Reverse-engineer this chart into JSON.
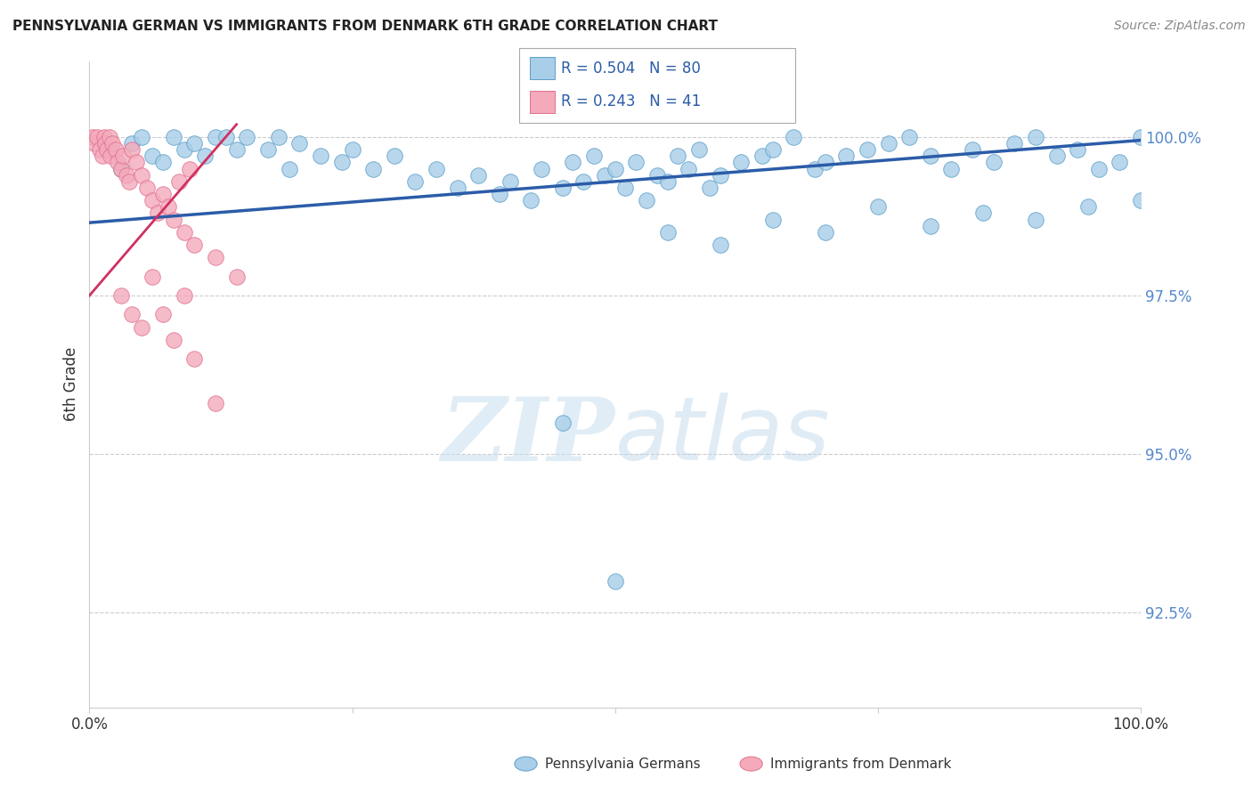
{
  "title": "PENNSYLVANIA GERMAN VS IMMIGRANTS FROM DENMARK 6TH GRADE CORRELATION CHART",
  "source": "Source: ZipAtlas.com",
  "ylabel": "6th Grade",
  "ytick_values": [
    92.5,
    95.0,
    97.5,
    100.0
  ],
  "xmin": 0.0,
  "xmax": 100.0,
  "ymin": 91.0,
  "ymax": 101.2,
  "legend_blue_label": "Pennsylvania Germans",
  "legend_pink_label": "Immigrants from Denmark",
  "R_blue": 0.504,
  "N_blue": 80,
  "R_pink": 0.243,
  "N_pink": 41,
  "blue_color": "#A8CEE8",
  "blue_edge_color": "#5B9EC9",
  "blue_line_color": "#2B5CA8",
  "pink_color": "#F4AABB",
  "pink_edge_color": "#E07090",
  "pink_line_color": "#D03060",
  "watermark_color": "#DDEEF8",
  "tick_color": "#5588CC",
  "grid_color": "#CCCCCC",
  "spine_color": "#CCCCCC",
  "title_color": "#222222",
  "source_color": "#888888",
  "label_color": "#333333",
  "blue_points_x": [
    2,
    3,
    4,
    5,
    6,
    7,
    8,
    9,
    10,
    11,
    12,
    13,
    14,
    15,
    17,
    18,
    19,
    20,
    22,
    24,
    25,
    27,
    29,
    31,
    33,
    35,
    37,
    39,
    40,
    42,
    43,
    45,
    46,
    47,
    48,
    49,
    50,
    51,
    52,
    53,
    54,
    55,
    56,
    57,
    58,
    59,
    60,
    62,
    64,
    65,
    67,
    69,
    70,
    72,
    74,
    76,
    78,
    80,
    82,
    84,
    86,
    88,
    90,
    92,
    94,
    96,
    98,
    100,
    55,
    60,
    65,
    70,
    75,
    80,
    85,
    90,
    95,
    100,
    50,
    45
  ],
  "blue_points_y": [
    99.8,
    99.5,
    99.9,
    100.0,
    99.7,
    99.6,
    100.0,
    99.8,
    99.9,
    99.7,
    100.0,
    100.0,
    99.8,
    100.0,
    99.8,
    100.0,
    99.5,
    99.9,
    99.7,
    99.6,
    99.8,
    99.5,
    99.7,
    99.3,
    99.5,
    99.2,
    99.4,
    99.1,
    99.3,
    99.0,
    99.5,
    99.2,
    99.6,
    99.3,
    99.7,
    99.4,
    99.5,
    99.2,
    99.6,
    99.0,
    99.4,
    99.3,
    99.7,
    99.5,
    99.8,
    99.2,
    99.4,
    99.6,
    99.7,
    99.8,
    100.0,
    99.5,
    99.6,
    99.7,
    99.8,
    99.9,
    100.0,
    99.7,
    99.5,
    99.8,
    99.6,
    99.9,
    100.0,
    99.7,
    99.8,
    99.5,
    99.6,
    100.0,
    98.5,
    98.3,
    98.7,
    98.5,
    98.9,
    98.6,
    98.8,
    98.7,
    98.9,
    99.0,
    93.0,
    95.5
  ],
  "pink_points_x": [
    0.3,
    0.5,
    0.7,
    1.0,
    1.2,
    1.4,
    1.5,
    1.7,
    1.9,
    2.0,
    2.2,
    2.5,
    2.7,
    3.0,
    3.2,
    3.5,
    3.8,
    4.0,
    4.5,
    5.0,
    5.5,
    6.0,
    6.5,
    7.0,
    7.5,
    8.0,
    8.5,
    9.0,
    9.5,
    10.0,
    12.0,
    14.0,
    3.0,
    4.0,
    5.0,
    6.0,
    7.0,
    8.0,
    9.0,
    10.0,
    12.0
  ],
  "pink_points_y": [
    100.0,
    99.9,
    100.0,
    99.8,
    99.7,
    100.0,
    99.9,
    99.8,
    100.0,
    99.7,
    99.9,
    99.8,
    99.6,
    99.5,
    99.7,
    99.4,
    99.3,
    99.8,
    99.6,
    99.4,
    99.2,
    99.0,
    98.8,
    99.1,
    98.9,
    98.7,
    99.3,
    98.5,
    99.5,
    98.3,
    98.1,
    97.8,
    97.5,
    97.2,
    97.0,
    97.8,
    97.2,
    96.8,
    97.5,
    96.5,
    95.8
  ],
  "blue_line_x": [
    0,
    100
  ],
  "blue_line_y_start": 98.65,
  "blue_line_y_end": 99.95,
  "pink_line_x": [
    0,
    14
  ],
  "pink_line_y_start": 97.5,
  "pink_line_y_end": 100.2
}
